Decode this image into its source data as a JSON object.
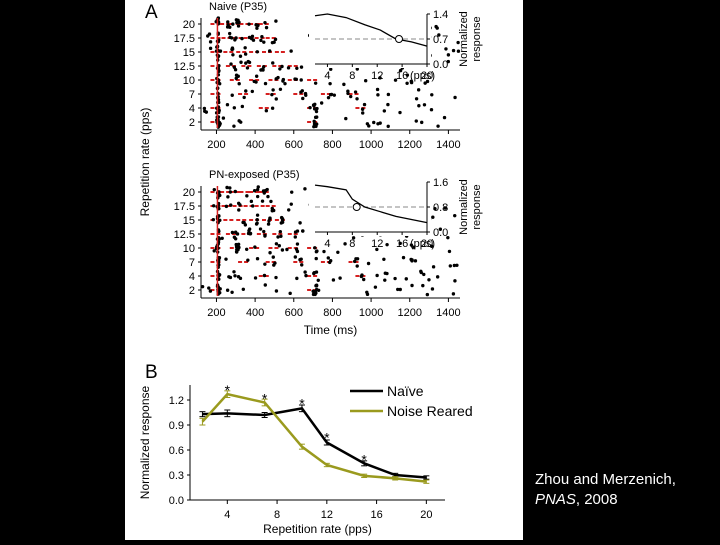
{
  "chart_data": [
    {
      "type": "scatter",
      "panel_label": "A",
      "title": "Naive (P35)",
      "xlabel": "",
      "ylabel": "Repetition rate (pps)",
      "x_ticks": [
        200,
        400,
        600,
        800,
        1000,
        1200,
        1400
      ],
      "y_categories": [
        "20",
        "17.5",
        "15",
        "12.5",
        "10",
        "7",
        "4",
        "2"
      ],
      "xlim": [
        120,
        1460
      ],
      "red_marks_cat": [
        "20",
        "17.5",
        "15",
        "12.5",
        "10",
        "7",
        "4",
        "2"
      ],
      "inset": {
        "type": "line",
        "xlabel": "(pps)",
        "ylabel": [
          "Normalized",
          "response"
        ],
        "x_ticks": [
          4,
          8,
          12,
          16,
          20
        ],
        "y_ticks": [
          "1.4",
          "0.7",
          "0.0"
        ],
        "ylim": [
          0,
          1.4
        ],
        "x": [
          2,
          4,
          7,
          10,
          12.5,
          15,
          17.5,
          20
        ],
        "y": [
          1.35,
          1.4,
          1.3,
          1.1,
          0.95,
          0.7,
          0.62,
          0.5
        ],
        "threshold": 0.7,
        "marker_x": 15.5
      }
    },
    {
      "type": "scatter",
      "title": "PN-exposed (P35)",
      "xlabel": "Time (ms)",
      "ylabel": "Repetition rate (pps)",
      "x_ticks": [
        200,
        400,
        600,
        800,
        1000,
        1200,
        1400
      ],
      "y_categories": [
        "20",
        "17.5",
        "15",
        "12.5",
        "10",
        "7",
        "4",
        "2"
      ],
      "xlim": [
        120,
        1460
      ],
      "inset": {
        "type": "line",
        "xlabel": "(pps)",
        "ylabel": [
          "Normalized",
          "response"
        ],
        "x_ticks": [
          4,
          8,
          12,
          16,
          20
        ],
        "y_ticks": [
          "1.6",
          "0.8",
          "0.0"
        ],
        "ylim": [
          0,
          1.6
        ],
        "x": [
          2,
          4,
          7,
          8,
          10,
          12.5,
          15,
          17.5,
          20
        ],
        "y": [
          1.5,
          1.45,
          1.35,
          1.05,
          0.8,
          0.65,
          0.5,
          0.4,
          0.3
        ],
        "threshold": 0.8,
        "marker_x": 8.7
      }
    },
    {
      "type": "line",
      "panel_label": "B",
      "title": "",
      "xlabel": "Repetition rate (pps)",
      "ylabel": "Normalized response",
      "x_ticks": [
        4,
        8,
        12,
        16,
        20
      ],
      "y_ticks": [
        "0.0",
        "0.3",
        "0.6",
        "0.9",
        "1.2"
      ],
      "xlim": [
        1,
        21.5
      ],
      "ylim": [
        0,
        1.38
      ],
      "legend_position": "top-right",
      "series": [
        {
          "name": "Naïve",
          "color": "#000000",
          "x": [
            2,
            4,
            7,
            10,
            12,
            15,
            17.5,
            20
          ],
          "y": [
            1.03,
            1.04,
            1.02,
            1.1,
            0.69,
            0.44,
            0.3,
            0.27
          ],
          "err": [
            0.03,
            0.04,
            0.03,
            0.04,
            0.03,
            0.03,
            0.02,
            0.02
          ]
        },
        {
          "name": "Noise Reared",
          "color": "#9a9a1e",
          "x": [
            2,
            4,
            7,
            10,
            12,
            15,
            17.5,
            20
          ],
          "y": [
            0.94,
            1.27,
            1.17,
            0.64,
            0.42,
            0.29,
            0.26,
            0.22
          ],
          "err": [
            0.04,
            0.04,
            0.04,
            0.03,
            0.02,
            0.02,
            0.02,
            0.02
          ]
        }
      ],
      "significance_markers": [
        {
          "x": 4,
          "y": 1.33,
          "text": "*"
        },
        {
          "x": 7,
          "y": 1.23,
          "text": "*"
        },
        {
          "x": 10,
          "y": 1.17,
          "text": "*"
        },
        {
          "x": 12,
          "y": 0.76,
          "text": "*"
        },
        {
          "x": 15,
          "y": 0.5,
          "text": "*"
        }
      ]
    }
  ],
  "credit": {
    "line1": "Zhou and Merzenich,",
    "journal": "PNAS",
    "year": ", 2008"
  }
}
